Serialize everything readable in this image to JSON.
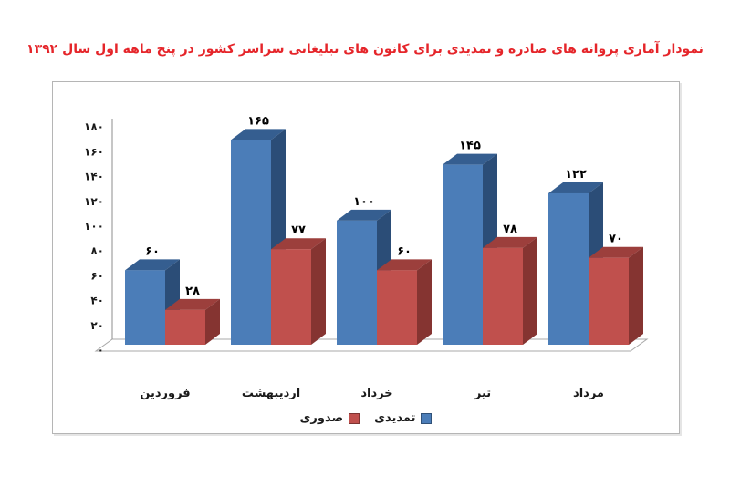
{
  "title": {
    "text": "نمودار آماری پروانه های صادره و تمدیدی برای کانون های تبلیغاتی سراسر کشور در پنج ماهه اول سال ۱۳۹۲",
    "color": "#e5252a"
  },
  "chart_data": {
    "type": "bar",
    "variant": "3d-clustered-column",
    "direction": "rtl",
    "title": "نمودار آماری پروانه های صادره و تمدیدی برای کانون های تبلیغاتی سراسر کشور در پنج ماهه اول سال ۱۳۹۲",
    "categories": [
      "فروردین",
      "اردیبهشت",
      "خرداد",
      "تیر",
      "مرداد"
    ],
    "series": [
      {
        "name": "تمدیدی",
        "values": [
          60,
          165,
          100,
          145,
          122
        ],
        "value_labels": [
          "۶۰",
          "۱۶۵",
          "۱۰۰",
          "۱۴۵",
          "۱۲۲"
        ],
        "color": "#4b7db8",
        "color_top": "#355e90",
        "color_side": "#2b4d77"
      },
      {
        "name": "صدوری",
        "values": [
          28,
          77,
          60,
          78,
          70
        ],
        "value_labels": [
          "۲۸",
          "۷۷",
          "۶۰",
          "۷۸",
          "۷۰"
        ],
        "color": "#c0504d",
        "color_top": "#9c3f3c",
        "color_side": "#853431"
      }
    ],
    "y_axis": {
      "min": 0,
      "max": 180,
      "step": 20,
      "tick_labels": [
        "۰",
        "۲۰",
        "۴۰",
        "۶۰",
        "۸۰",
        "۱۰۰",
        "۱۲۰",
        "۱۴۰",
        "۱۶۰",
        "۱۸۰"
      ]
    },
    "grid": false,
    "legend": {
      "position": "bottom",
      "items": [
        {
          "label": "صدوری",
          "color": "#c0504d"
        },
        {
          "label": "تمدیدی",
          "color": "#4b7db8"
        }
      ]
    },
    "text_color": "#1a1a1a",
    "axis_color": "#8c8c8c",
    "floor_stroke": "#a8a8a8"
  }
}
